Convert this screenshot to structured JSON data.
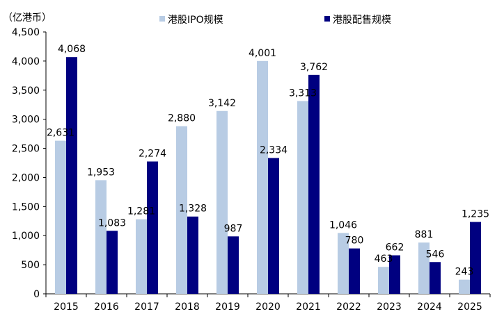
{
  "chart_data": {
    "type": "bar",
    "unit_label": "（亿港币）",
    "categories": [
      "2015",
      "2016",
      "2017",
      "2018",
      "2019",
      "2020",
      "2021",
      "2022",
      "2023",
      "2024",
      "2025"
    ],
    "series": [
      {
        "name": "港股IPO规模",
        "color": "#b8cce4",
        "values": [
          2631,
          1953,
          1281,
          2880,
          3142,
          4001,
          3313,
          1046,
          463,
          881,
          243
        ],
        "labels": [
          "2,631",
          "1,953",
          "1,281",
          "2,880",
          "3,142",
          "4,001",
          "3,313",
          "1,046",
          "463",
          "881",
          "243"
        ]
      },
      {
        "name": "港股配售规模",
        "color": "#000080",
        "values": [
          4068,
          1083,
          2274,
          1328,
          987,
          2334,
          3762,
          780,
          662,
          546,
          1235
        ],
        "labels": [
          "4,068",
          "1,083",
          "2,274",
          "1,328",
          "987",
          "2,334",
          "3,762",
          "780",
          "662",
          "546",
          "1,235"
        ]
      }
    ],
    "ylim": [
      0,
      4500
    ],
    "yticks": [
      0,
      500,
      1000,
      1500,
      2000,
      2500,
      3000,
      3500,
      4000,
      4500
    ],
    "ytick_labels": [
      "0",
      "500",
      "1,000",
      "1,500",
      "2,000",
      "2,500",
      "3,000",
      "3,500",
      "4,000",
      "4,500"
    ],
    "legend_position": "top-center",
    "grid": false
  }
}
